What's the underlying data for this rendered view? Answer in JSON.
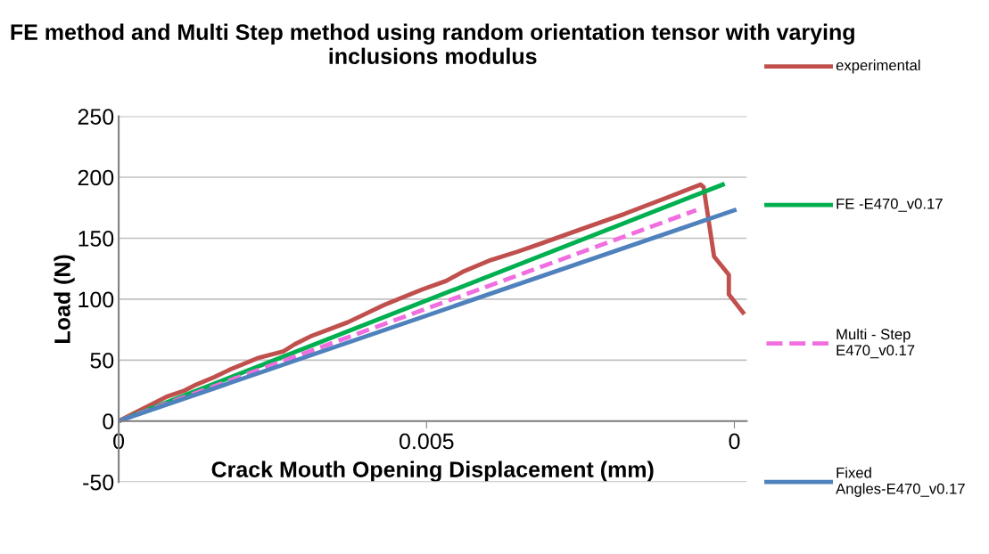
{
  "chart_data": {
    "type": "line",
    "title": "FE method and Multi Step method using random orientation tensor with varying inclusions modulus",
    "xlabel": "Crack Mouth Opening Displacement (mm)",
    "ylabel": "Load (N)",
    "xlim": [
      0,
      0.0102
    ],
    "xticks": [
      0,
      0.005,
      {
        "value": 0.01,
        "label": "0"
      }
    ],
    "ylim": [
      -50,
      250
    ],
    "yticks": [
      -50,
      0,
      50,
      100,
      150,
      200,
      250
    ],
    "grid": "y",
    "legend": "right",
    "line_style": "solid",
    "marker": "none",
    "series": [
      {
        "name": "experimental",
        "color": "#c0504d",
        "x": [
          0,
          0.00078,
          0.00107,
          0.00122,
          0.00155,
          0.00184,
          0.00228,
          0.00267,
          0.00286,
          0.00314,
          0.00372,
          0.00397,
          0.0043,
          0.00459,
          0.00493,
          0.00532,
          0.00561,
          0.00604,
          0.00648,
          0.00677,
          0.00749,
          0.00822,
          0.00894,
          0.00945,
          0.0095,
          0.00967,
          0.00991,
          0.00991,
          0.01014
        ],
        "values": [
          0,
          20,
          25,
          29,
          36,
          43,
          52,
          57,
          63,
          70,
          81,
          87,
          95,
          101,
          108,
          115,
          123,
          132,
          139,
          144,
          157,
          170,
          184,
          194,
          192,
          135,
          120,
          104,
          89
        ]
      },
      {
        "name": "FE -E470_v0.17",
        "color": "#00b050",
        "x": [
          0,
          0.00981
        ],
        "values": [
          0,
          194
        ]
      },
      {
        "name": "Multi - Step E470_v0.17",
        "color": "#f06ee0",
        "x": [
          0,
          0.00938
        ],
        "values": [
          0,
          173
        ],
        "line_style": "dashed"
      },
      {
        "name": "Fixed Angles-E470_v0.17",
        "color": "#4f81bd",
        "x": [
          0,
          0.01
        ],
        "values": [
          0,
          173
        ]
      }
    ]
  }
}
